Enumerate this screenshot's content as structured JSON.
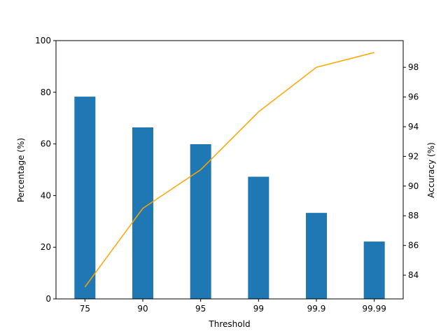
{
  "chart_data": {
    "type": "bar",
    "categories": [
      "75",
      "90",
      "95",
      "99",
      "99.9",
      "99.99"
    ],
    "series": [
      {
        "kind": "bar",
        "axis": "left",
        "color": "#1f77b4",
        "values": [
          78.3,
          66.4,
          59.9,
          47.3,
          33.3,
          22.2
        ]
      },
      {
        "kind": "line",
        "axis": "right",
        "color": "#ffa500",
        "values": [
          83.2,
          88.5,
          91.1,
          95.0,
          98.0,
          99.0
        ]
      }
    ],
    "xlabel": "Threshold",
    "ylabel": "Percentage (%)",
    "y2label": "Accuracy (%)",
    "ylim": [
      0,
      100
    ],
    "y2lim": [
      82.4,
      99.8
    ],
    "yticks": [
      "0",
      "20",
      "40",
      "60",
      "80",
      "100"
    ],
    "y2ticks": [
      "84",
      "86",
      "88",
      "90",
      "92",
      "94",
      "96",
      "98"
    ],
    "title": "",
    "grid": false,
    "legend": "none"
  }
}
